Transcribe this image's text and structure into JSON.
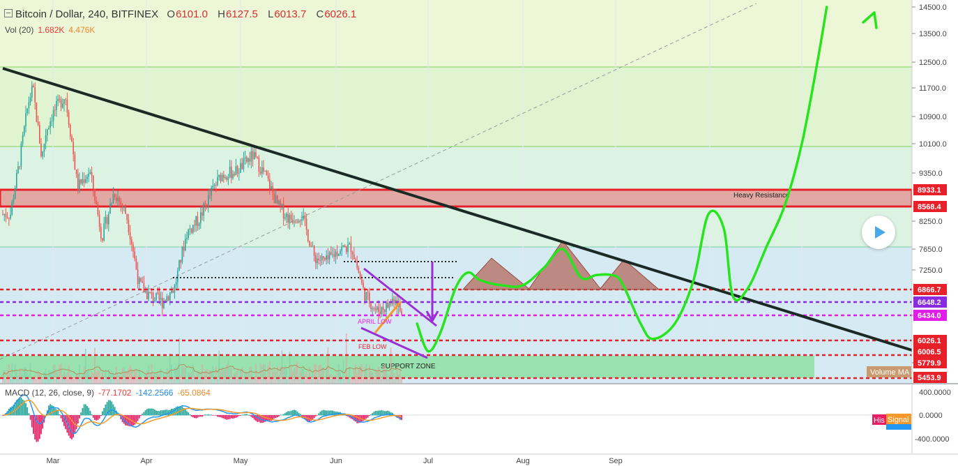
{
  "header": {
    "symbol": "Bitcoin / Dollar, 240, BITFINEX",
    "o_label": "O",
    "o_value": "6101.0",
    "h_label": "H",
    "h_value": "6127.5",
    "l_label": "L",
    "l_value": "6013.7",
    "c_label": "C",
    "c_value": "6026.1"
  },
  "volume": {
    "label": "Vol (20)",
    "value1": "1.682K",
    "value2": "4.476K",
    "ma_label": "Volume MA"
  },
  "macd": {
    "label": "MACD (12, 26, close, 9)",
    "v1": "-77.1702",
    "v2": "-142.2566",
    "v3": "-65.0864",
    "hist_label": "His",
    "signal_label": "Signal",
    "axis_ticks": [
      "400.0000",
      "0.0000",
      "-400.0000"
    ]
  },
  "annotations": {
    "heavy_resistance": "Heavy Resistance",
    "april_low": "APRIL LOW",
    "feb_low": "FEB LOW",
    "support_zone": "SUPPORT ZONE"
  },
  "colors": {
    "up": "#26a69a",
    "down": "#ef5350",
    "trend": "#1b2a25",
    "projection": "#27e51c",
    "level_red": "#e8202a",
    "level_purple": "#8a2be2",
    "level_magenta": "#e31de8"
  },
  "chart_data": {
    "type": "candlestick",
    "title": "Bitcoin / Dollar, 240, BITFINEX",
    "y_axis_ticks": [
      14500.0,
      13500.0,
      12500.0,
      11700.0,
      10900.0,
      10100.0,
      9350.0,
      8250.0,
      7650.0,
      7250.0,
      6434.0,
      5779.9
    ],
    "x_axis_ticks": [
      "Mar",
      "Apr",
      "May",
      "Jun",
      "Jul",
      "Aug",
      "Sep"
    ],
    "price_labels": [
      {
        "value": "8933.1",
        "color": "#e8202a"
      },
      {
        "value": "8568.4",
        "color": "#e8202a"
      },
      {
        "value": "6866.7",
        "color": "#e8202a"
      },
      {
        "value": "6648.2",
        "color": "#8a2be2"
      },
      {
        "value": "6434.0",
        "color": "#e31de8"
      },
      {
        "value": "6026.1",
        "color": "#e8202a"
      },
      {
        "value": "6006.5",
        "color": "#e8202a"
      },
      {
        "value": "5453.9",
        "color": "#e8202a"
      }
    ],
    "price_series": [
      {
        "date": "Feb 10",
        "close": 8400
      },
      {
        "date": "Feb 14",
        "close": 9600
      },
      {
        "date": "Feb 18",
        "close": 11300
      },
      {
        "date": "Feb 20",
        "close": 11700
      },
      {
        "date": "Feb 24",
        "close": 9700
      },
      {
        "date": "Feb 26",
        "close": 10500
      },
      {
        "date": "Mar 1",
        "close": 11000
      },
      {
        "date": "Mar 5",
        "close": 11500
      },
      {
        "date": "Mar 9",
        "close": 9000
      },
      {
        "date": "Mar 13",
        "close": 9400
      },
      {
        "date": "Mar 17",
        "close": 7900
      },
      {
        "date": "Mar 21",
        "close": 8900
      },
      {
        "date": "Mar 25",
        "close": 8400
      },
      {
        "date": "Mar 29",
        "close": 7000
      },
      {
        "date": "Apr 1",
        "close": 6800
      },
      {
        "date": "Apr 6",
        "close": 6650
      },
      {
        "date": "Apr 10",
        "close": 6900
      },
      {
        "date": "Apr 14",
        "close": 8000
      },
      {
        "date": "Apr 18",
        "close": 8300
      },
      {
        "date": "Apr 22",
        "close": 8900
      },
      {
        "date": "Apr 25",
        "close": 9300
      },
      {
        "date": "Apr 30",
        "close": 9400
      },
      {
        "date": "May 5",
        "close": 9800
      },
      {
        "date": "May 9",
        "close": 9300
      },
      {
        "date": "May 13",
        "close": 8600
      },
      {
        "date": "May 17",
        "close": 8300
      },
      {
        "date": "May 21",
        "close": 8400
      },
      {
        "date": "May 25",
        "close": 7500
      },
      {
        "date": "May 29",
        "close": 7400
      },
      {
        "date": "Jun 2",
        "close": 7650
      },
      {
        "date": "Jun 6",
        "close": 7700
      },
      {
        "date": "Jun 10",
        "close": 6800
      },
      {
        "date": "Jun 14",
        "close": 6500
      },
      {
        "date": "Jun 18",
        "close": 6600
      },
      {
        "date": "Jun 20",
        "close": 6750
      },
      {
        "date": "Jun 24",
        "close": 6100
      },
      {
        "date": "Jun 25",
        "close": 6026
      }
    ],
    "projection_series": [
      {
        "date": "Jun 27",
        "price": 6300
      },
      {
        "date": "Jul 1",
        "price": 6000
      },
      {
        "date": "Jul 5",
        "price": 6150
      },
      {
        "date": "Jul 10",
        "price": 6900
      },
      {
        "date": "Jul 14",
        "price": 7200
      },
      {
        "date": "Jul 18",
        "price": 7050
      },
      {
        "date": "Jul 25",
        "price": 6950
      },
      {
        "date": "Aug 1",
        "price": 6950
      },
      {
        "date": "Aug 8",
        "price": 7300
      },
      {
        "date": "Aug 14",
        "price": 7650
      },
      {
        "date": "Aug 20",
        "price": 7100
      },
      {
        "date": "Aug 25",
        "price": 7150
      },
      {
        "date": "Aug 30",
        "price": 7150
      },
      {
        "date": "Sep 3",
        "price": 7000
      },
      {
        "date": "Sep 9",
        "price": 6300
      },
      {
        "date": "Sep 13",
        "price": 6050
      },
      {
        "date": "Sep 20",
        "price": 6300
      },
      {
        "date": "Sep 26",
        "price": 7050
      },
      {
        "date": "Oct 1",
        "price": 8400
      },
      {
        "date": "Oct 6",
        "price": 8100
      },
      {
        "date": "Oct 9",
        "price": 6750
      },
      {
        "date": "Oct 14",
        "price": 6900
      },
      {
        "date": "Oct 20",
        "price": 7700
      },
      {
        "date": "Oct 26",
        "price": 8600
      },
      {
        "date": "Nov 1",
        "price": 10100
      },
      {
        "date": "Nov 6",
        "price": 12500
      },
      {
        "date": "Nov 9",
        "price": 14500
      }
    ]
  }
}
